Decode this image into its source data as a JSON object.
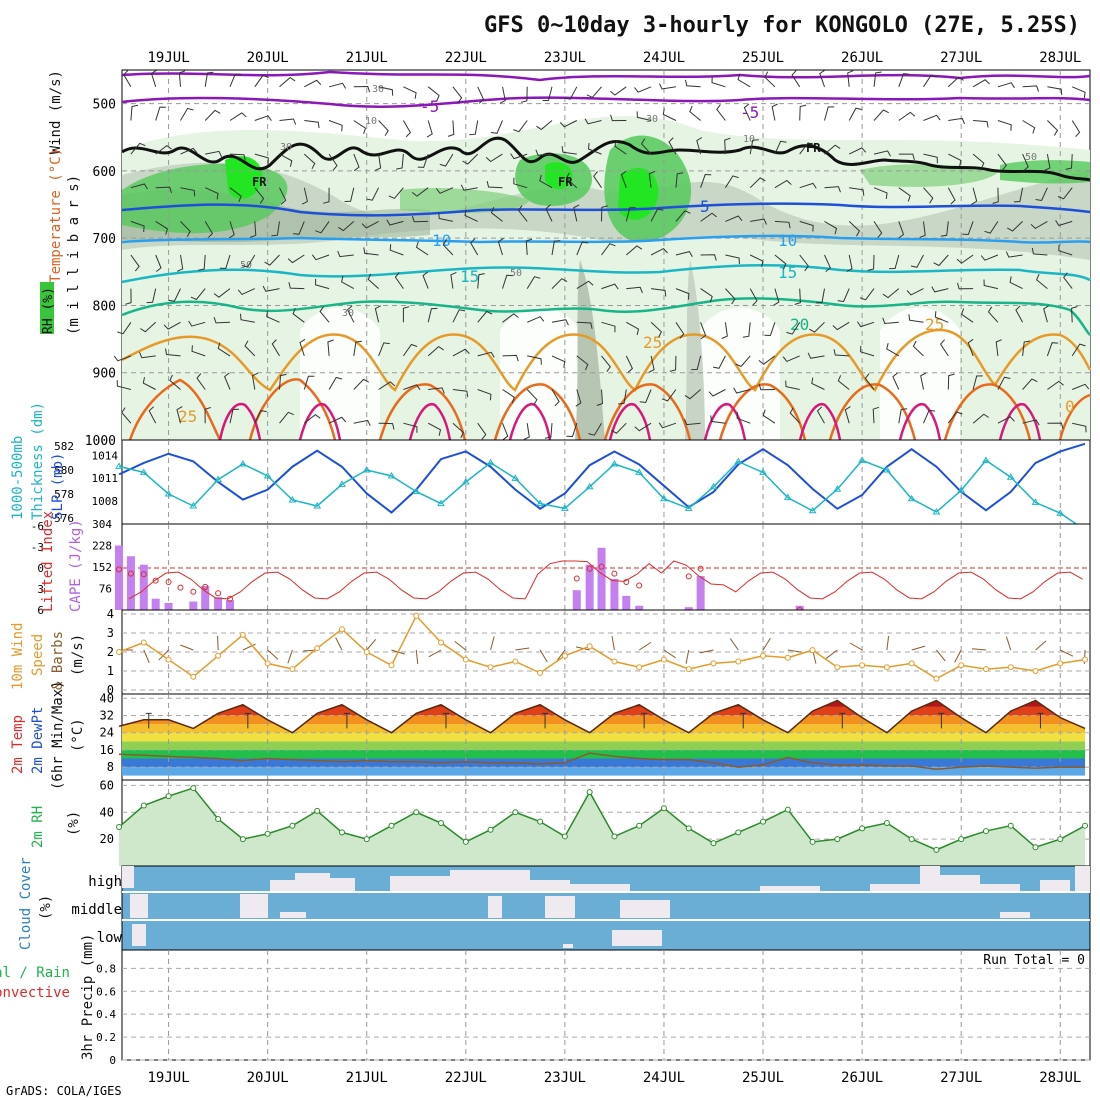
{
  "header": {
    "title": "GFS 0~10day 3-hourly for KONGOLO (27E, 5.25S)",
    "credit": "GrADS: COLA/IGES"
  },
  "x_axis": {
    "dates": [
      "19JUL",
      "20JUL",
      "21JUL",
      "22JUL",
      "23JUL",
      "24JUL",
      "25JUL",
      "26JUL",
      "27JUL",
      "28JUL"
    ],
    "range_days": [
      18.53,
      28.3
    ]
  },
  "colors": {
    "purple": "#8a17b8",
    "blue": "#1e4fd8",
    "cyan": "#1bb6c4",
    "green": "#1fb54a",
    "orange": "#e59a2a",
    "magenta": "#d8187a",
    "red": "#dd2b2b",
    "cloud": "#6aaed6",
    "lavender": "#c380ee",
    "brown": "#8b5a2b"
  },
  "panels": [
    {
      "id": "upper_air",
      "labels": [
        "Wind (m/s)",
        "Temperature (°C)",
        "RH (%)",
        "(m i l l i b a r s)"
      ],
      "y_ticks": [
        "500",
        "600",
        "700",
        "800",
        "900",
        "1000"
      ],
      "isotherm_labels": [
        "-5",
        "-5",
        "5",
        "10",
        "10",
        "15",
        "15",
        "20",
        "25",
        "25",
        "25",
        "0",
        "FR",
        "FR",
        "FR"
      ],
      "rh_labels": [
        "30",
        "10",
        "30",
        "50",
        "50",
        "30",
        "10",
        "50",
        "30"
      ]
    },
    {
      "id": "thickness_slp",
      "labels": [
        "1000-500mb",
        "Thickness (dm)",
        "SLP (mb)"
      ],
      "left_ticks": [
        "582",
        "580",
        "578",
        "576"
      ],
      "right_ticks": [
        "1014",
        "1011",
        "1008"
      ]
    },
    {
      "id": "cape_li",
      "labels": [
        "Lifted Index",
        "CAPE (J/kg)"
      ],
      "left_ticks": [
        "-6",
        "-3",
        "0",
        "3",
        "6"
      ],
      "right_ticks": [
        "304",
        "228",
        "152",
        "76"
      ]
    },
    {
      "id": "wind10m",
      "labels": [
        "10m Wind",
        "Speed",
        "& Barbs",
        "(m/s)"
      ],
      "y_ticks": [
        "4",
        "3",
        "2",
        "1",
        "0"
      ]
    },
    {
      "id": "temp2m",
      "labels": [
        "2m Temp",
        "2m DewPt",
        "(6hr Min/Max)",
        "(°C)"
      ],
      "y_ticks": [
        "40",
        "32",
        "24",
        "16",
        "8"
      ]
    },
    {
      "id": "rh2m",
      "labels": [
        "2m RH",
        "(%)"
      ],
      "y_ticks": [
        "60",
        "40",
        "20"
      ]
    },
    {
      "id": "cloud",
      "labels": [
        "Cloud Cover",
        "(%)"
      ],
      "levels": [
        "high",
        "middle",
        "low"
      ]
    },
    {
      "id": "precip",
      "labels": [
        "3hr Precip (mm)",
        "Total / Rain",
        "Convective"
      ],
      "y_ticks": [
        "0.8",
        "0.6",
        "0.4",
        "0.2",
        "0"
      ],
      "run_total": "Run Total = 0"
    }
  ],
  "chart_data": [
    {
      "type": "line",
      "title": "1000-500mb Thickness (dm) / SLP (mb)",
      "x": [
        18.5,
        18.75,
        19.0,
        19.25,
        19.5,
        19.75,
        20.0,
        20.25,
        20.5,
        20.75,
        21.0,
        21.25,
        21.5,
        21.75,
        22.0,
        22.25,
        22.5,
        22.75,
        23.0,
        23.25,
        23.5,
        23.75,
        24.0,
        24.25,
        24.5,
        24.75,
        25.0,
        25.25,
        25.5,
        25.75,
        26.0,
        26.25,
        26.5,
        26.75,
        27.0,
        27.25,
        27.5,
        27.75,
        28.0,
        28.25
      ],
      "series": [
        {
          "name": "SLP (mb)",
          "values": [
            1011.5,
            1013,
            1014.2,
            1013.2,
            1010.5,
            1008.2,
            1009.5,
            1012.5,
            1014.6,
            1012.5,
            1009,
            1006.5,
            1009.5,
            1013.5,
            1014.5,
            1012.5,
            1009.5,
            1007,
            1009,
            1012.7,
            1014.5,
            1012.8,
            1010,
            1007.2,
            1009.2,
            1012.8,
            1014.8,
            1012.7,
            1009.6,
            1007,
            1008.8,
            1012.5,
            1014.8,
            1012.5,
            1009.2,
            1006.8,
            1009.2,
            1013,
            1014.5,
            1015.5
          ]
        },
        {
          "name": "Thickness (dm)",
          "values": [
            580.3,
            579.8,
            578.0,
            577.0,
            579.2,
            580.5,
            579.5,
            577.5,
            577.0,
            578.8,
            580.0,
            579.5,
            578.2,
            577.2,
            579.0,
            580.6,
            579.3,
            577.2,
            576.8,
            578.6,
            580.5,
            579.8,
            577.6,
            576.8,
            578.6,
            580.7,
            579.8,
            577.7,
            576.6,
            578.4,
            580.8,
            580.0,
            577.6,
            576.5,
            578.3,
            580.8,
            579.4,
            577.3,
            576.4,
            575.0
          ]
        }
      ]
    },
    {
      "type": "bar",
      "title": "CAPE (J/kg) / Lifted Index",
      "x": [
        18.5,
        18.62,
        18.75,
        18.87,
        19.0,
        19.12,
        19.25,
        19.37,
        19.5,
        19.62,
        23.12,
        23.25,
        23.37,
        23.5,
        23.62,
        23.75,
        24.25,
        24.37,
        25.37
      ],
      "series": [
        {
          "name": "CAPE (J/kg)",
          "values": [
            228,
            190,
            160,
            40,
            25,
            0,
            30,
            85,
            45,
            35,
            70,
            160,
            220,
            110,
            50,
            15,
            10,
            120,
            15
          ]
        },
        {
          "name": "Lifted Index",
          "values": [
            0.2,
            0.8,
            0.9,
            1.8,
            2.0,
            2.8,
            3.4,
            2.7,
            3.6,
            4.4,
            1.5,
            0.1,
            -0.2,
            0.8,
            2.0,
            2.5,
            1.2,
            0.1,
            6.0
          ]
        }
      ]
    },
    {
      "type": "line",
      "title": "10m Wind Speed (m/s)",
      "x": [
        18.5,
        18.75,
        19.0,
        19.25,
        19.5,
        19.75,
        20.0,
        20.25,
        20.5,
        20.75,
        21.0,
        21.25,
        21.5,
        21.75,
        22.0,
        22.25,
        22.5,
        22.75,
        23.0,
        23.25,
        23.5,
        23.75,
        24.0,
        24.25,
        24.5,
        24.75,
        25.0,
        25.25,
        25.5,
        25.75,
        26.0,
        26.25,
        26.5,
        26.75,
        27.0,
        27.25,
        27.5,
        27.75,
        28.0,
        28.25
      ],
      "values": [
        2.0,
        2.5,
        1.6,
        0.7,
        1.8,
        2.9,
        1.4,
        1.1,
        2.2,
        3.2,
        2.0,
        1.3,
        3.9,
        2.5,
        1.6,
        1.2,
        1.5,
        0.9,
        1.8,
        2.3,
        1.5,
        1.2,
        1.6,
        1.1,
        1.4,
        1.5,
        1.8,
        1.7,
        2.1,
        1.2,
        1.3,
        1.2,
        1.4,
        0.6,
        1.3,
        1.1,
        1.2,
        1.0,
        1.4,
        1.6
      ]
    },
    {
      "type": "area",
      "title": "2m Temp / 2m DewPt (°C)",
      "x": [
        18.5,
        18.75,
        19.0,
        19.25,
        19.5,
        19.75,
        20.0,
        20.25,
        20.5,
        20.75,
        21.0,
        21.25,
        21.5,
        21.75,
        22.0,
        22.25,
        22.5,
        22.75,
        23.0,
        23.25,
        23.5,
        23.75,
        24.0,
        24.25,
        24.5,
        24.75,
        25.0,
        25.25,
        25.5,
        25.75,
        26.0,
        26.25,
        26.5,
        26.75,
        27.0,
        27.25,
        27.5,
        27.75,
        28.0,
        28.25
      ],
      "series": [
        {
          "name": "2m Temp",
          "values": [
            27,
            30,
            30,
            26,
            33,
            37,
            30,
            24,
            33,
            37,
            30,
            24,
            33,
            37,
            30,
            24,
            33,
            37,
            30,
            24,
            33,
            37,
            30,
            24,
            33,
            37,
            30,
            24,
            34,
            39,
            31,
            24,
            34,
            39,
            31,
            24,
            34,
            39,
            31,
            26
          ]
        },
        {
          "name": "2m DewPt",
          "values": [
            14,
            13.5,
            13,
            12.5,
            12,
            11,
            12,
            11.5,
            11,
            10.5,
            11,
            10.5,
            10.5,
            10,
            10.5,
            10,
            10,
            9.5,
            10,
            14.5,
            13,
            12,
            11.5,
            11.5,
            10,
            8,
            9,
            12.5,
            10,
            9,
            9,
            8.5,
            8.5,
            7,
            8,
            8.5,
            8,
            7.5,
            8,
            8
          ]
        }
      ]
    },
    {
      "type": "area",
      "title": "2m RH (%)",
      "x": [
        18.5,
        18.75,
        19.0,
        19.25,
        19.5,
        19.75,
        20.0,
        20.25,
        20.5,
        20.75,
        21.0,
        21.25,
        21.5,
        21.75,
        22.0,
        22.25,
        22.5,
        22.75,
        23.0,
        23.25,
        23.5,
        23.75,
        24.0,
        24.25,
        24.5,
        24.75,
        25.0,
        25.25,
        25.5,
        25.75,
        26.0,
        26.25,
        26.5,
        26.75,
        27.0,
        27.25,
        27.5,
        27.75,
        28.0,
        28.25
      ],
      "values": [
        29,
        45,
        52,
        58,
        35,
        20,
        24,
        30,
        41,
        25,
        20,
        30,
        40,
        32,
        18,
        27,
        40,
        33,
        22,
        55,
        22,
        30,
        43,
        28,
        17,
        25,
        33,
        42,
        18,
        20,
        28,
        32,
        20,
        12,
        20,
        26,
        30,
        14,
        20,
        30
      ]
    }
  ]
}
